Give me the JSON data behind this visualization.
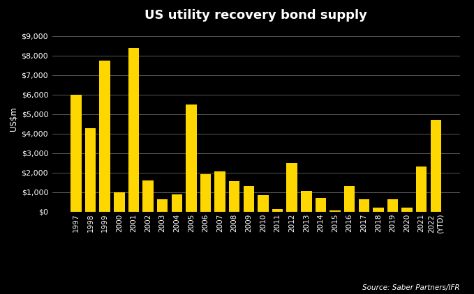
{
  "title": "US utility recovery bond supply",
  "ylabel": "US$m",
  "source": "Source: Saber Partners/IFR",
  "background_color": "#000000",
  "bar_color": "#FFD700",
  "grid_color": "#666666",
  "text_color": "#FFFFFF",
  "ylim": [
    0,
    9500
  ],
  "yticks": [
    0,
    1000,
    2000,
    3000,
    4000,
    5000,
    6000,
    7000,
    8000,
    9000
  ],
  "categories": [
    "1997",
    "1998",
    "1999",
    "2000",
    "2001",
    "2002",
    "2003",
    "2004",
    "2005",
    "2006",
    "2007",
    "2008",
    "2009",
    "2010",
    "2011",
    "2012",
    "2013",
    "2014",
    "2015",
    "2016",
    "2017",
    "2018",
    "2019",
    "2020",
    "2021",
    "2022\n(YTD)"
  ],
  "values": [
    6000,
    4300,
    7750,
    1000,
    8400,
    1600,
    650,
    875,
    5500,
    1925,
    2050,
    1575,
    1300,
    850,
    150,
    2500,
    1050,
    700,
    75,
    1300,
    650,
    200,
    650,
    200,
    2300,
    4700
  ]
}
